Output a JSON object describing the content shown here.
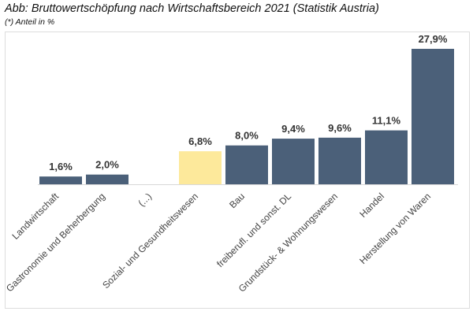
{
  "header": {
    "title": "Abb: Bruttowertschöpfung nach Wirtschaftsbereich 2021 (Statistik Austria)",
    "subtitle": "(*) Anteil in %"
  },
  "chart_data": {
    "type": "bar",
    "title": "Abb: Bruttowertschöpfung nach Wirtschaftsbereich 2021 (Statistik Austria)",
    "subtitle": "(*) Anteil in %",
    "categories": [
      "Landwirtschaft",
      "Gastronomie und Beherbergung",
      "(...)",
      "Sozial- und Gesundheitswesen",
      "Bau",
      "freiberufl. und sonst. DL",
      "Grundstück- & Wohnungswesen",
      "Handel",
      "Herstellung von Waren"
    ],
    "values": [
      1.6,
      2.0,
      null,
      6.8,
      8.0,
      9.4,
      9.6,
      11.1,
      27.9
    ],
    "data_labels": [
      "1,6%",
      "2,0%",
      "",
      "6,8%",
      "8,0%",
      "9,4%",
      "9,6%",
      "11,1%",
      "27,9%"
    ],
    "highlight_index": 3,
    "colors": {
      "bar": "#4b6079",
      "highlight": "#fde99b"
    },
    "xlabel": "",
    "ylabel": "",
    "ylim": [
      0,
      30
    ],
    "grid": false,
    "legend": "none"
  }
}
